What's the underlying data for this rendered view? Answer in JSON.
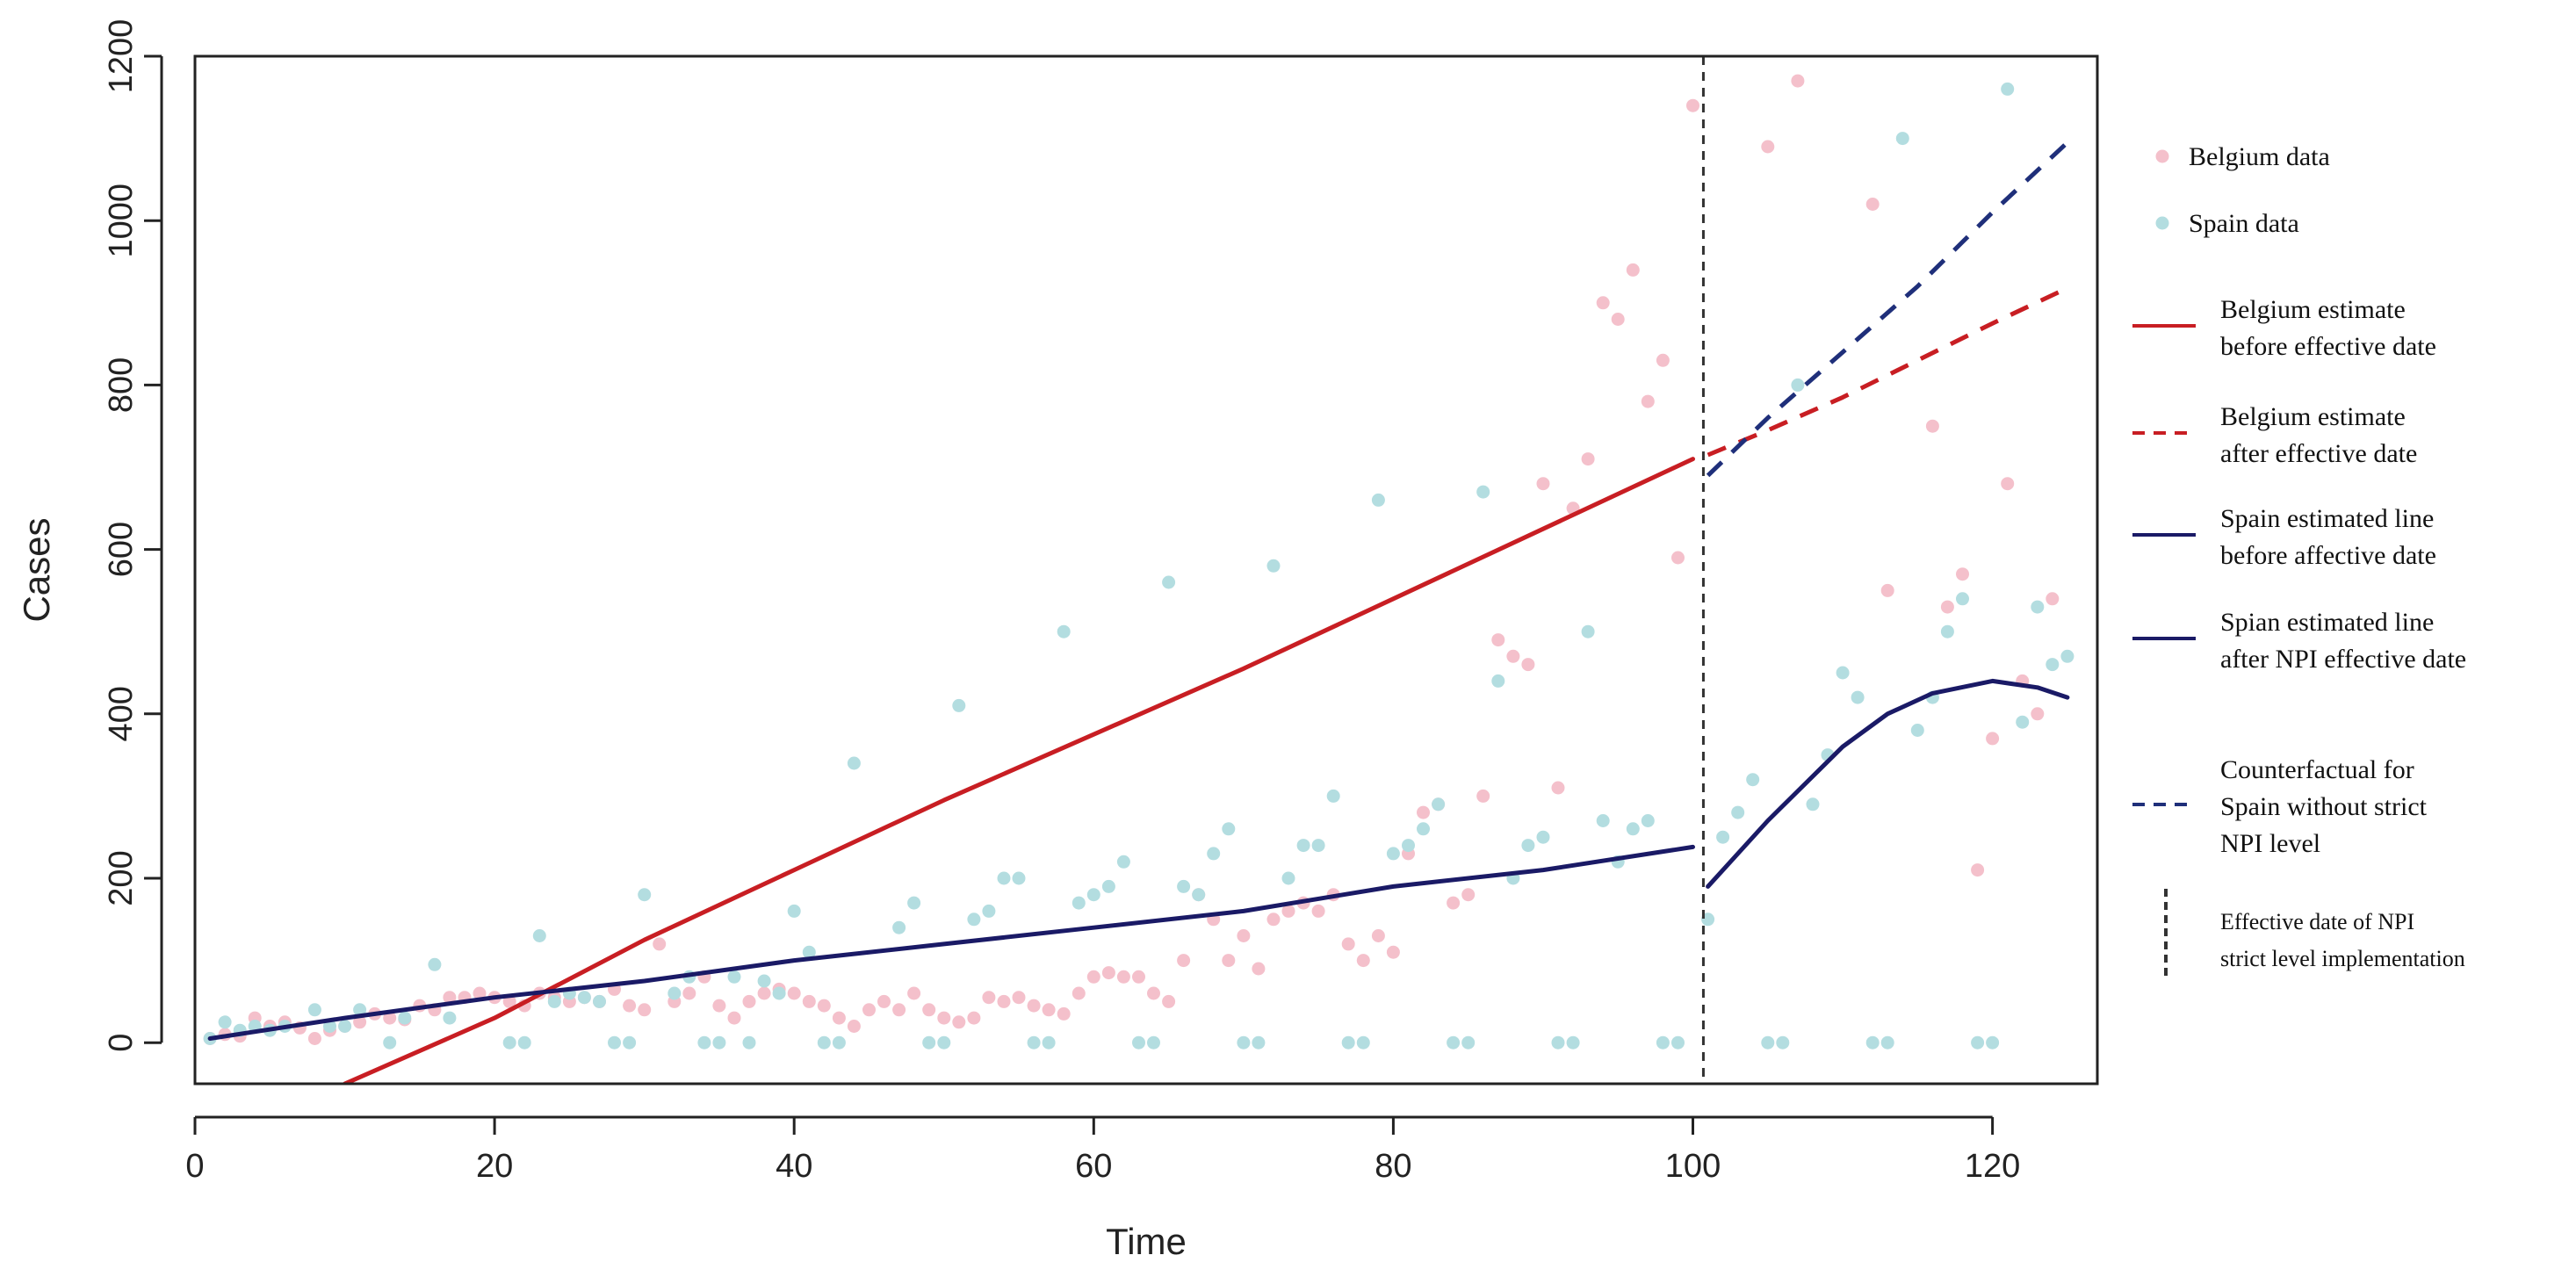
{
  "chart_data": {
    "type": "scatter",
    "title": "",
    "xlabel": "Time",
    "ylabel": "Cases",
    "xlim": [
      0,
      127
    ],
    "ylim": [
      -50,
      1200
    ],
    "x_ticks": [
      0,
      20,
      40,
      60,
      80,
      100,
      120
    ],
    "y_ticks": [
      0,
      200,
      400,
      600,
      800,
      1000,
      1200
    ],
    "grid": false,
    "legend_position": "right",
    "effective_date": 100.7,
    "colors": {
      "belgium_points": "#f4c0cb",
      "spain_points": "#b3dde0",
      "belgium_line": "#c81e23",
      "spain_line": "#1a1a66",
      "counterfactual": "#1f2f7a",
      "vline": "#333333"
    },
    "series": [
      {
        "name": "Belgium data",
        "kind": "points",
        "points": [
          [
            1,
            5
          ],
          [
            2,
            10
          ],
          [
            3,
            8
          ],
          [
            4,
            30
          ],
          [
            5,
            20
          ],
          [
            6,
            25
          ],
          [
            7,
            18
          ],
          [
            8,
            5
          ],
          [
            9,
            15
          ],
          [
            10,
            20
          ],
          [
            11,
            25
          ],
          [
            12,
            35
          ],
          [
            13,
            30
          ],
          [
            14,
            28
          ],
          [
            15,
            45
          ],
          [
            16,
            40
          ],
          [
            17,
            55
          ],
          [
            18,
            55
          ],
          [
            19,
            60
          ],
          [
            20,
            55
          ],
          [
            21,
            50
          ],
          [
            22,
            45
          ],
          [
            23,
            60
          ],
          [
            24,
            55
          ],
          [
            25,
            50
          ],
          [
            26,
            55
          ],
          [
            27,
            50
          ],
          [
            28,
            65
          ],
          [
            29,
            45
          ],
          [
            30,
            40
          ],
          [
            31,
            120
          ],
          [
            32,
            50
          ],
          [
            33,
            60
          ],
          [
            34,
            80
          ],
          [
            35,
            45
          ],
          [
            36,
            30
          ],
          [
            37,
            50
          ],
          [
            38,
            60
          ],
          [
            39,
            65
          ],
          [
            40,
            60
          ],
          [
            41,
            50
          ],
          [
            42,
            45
          ],
          [
            43,
            30
          ],
          [
            44,
            20
          ],
          [
            45,
            40
          ],
          [
            46,
            50
          ],
          [
            47,
            40
          ],
          [
            48,
            60
          ],
          [
            49,
            40
          ],
          [
            50,
            30
          ],
          [
            51,
            25
          ],
          [
            52,
            30
          ],
          [
            53,
            55
          ],
          [
            54,
            50
          ],
          [
            55,
            55
          ],
          [
            56,
            45
          ],
          [
            57,
            40
          ],
          [
            58,
            35
          ],
          [
            59,
            60
          ],
          [
            60,
            80
          ],
          [
            61,
            85
          ],
          [
            62,
            80
          ],
          [
            63,
            80
          ],
          [
            64,
            60
          ],
          [
            65,
            50
          ],
          [
            66,
            100
          ],
          [
            67,
            180
          ],
          [
            68,
            150
          ],
          [
            69,
            100
          ],
          [
            70,
            130
          ],
          [
            71,
            90
          ],
          [
            72,
            150
          ],
          [
            73,
            160
          ],
          [
            74,
            170
          ],
          [
            75,
            160
          ],
          [
            76,
            180
          ],
          [
            77,
            120
          ],
          [
            78,
            100
          ],
          [
            79,
            130
          ],
          [
            80,
            110
          ],
          [
            81,
            230
          ],
          [
            82,
            280
          ],
          [
            83,
            290
          ],
          [
            84,
            170
          ],
          [
            85,
            180
          ],
          [
            86,
            300
          ],
          [
            87,
            490
          ],
          [
            88,
            470
          ],
          [
            89,
            460
          ],
          [
            90,
            680
          ],
          [
            91,
            310
          ],
          [
            92,
            650
          ],
          [
            93,
            710
          ],
          [
            94,
            900
          ],
          [
            95,
            880
          ],
          [
            96,
            940
          ],
          [
            97,
            780
          ],
          [
            98,
            830
          ],
          [
            99,
            590
          ],
          [
            100,
            1140
          ],
          [
            105,
            1090
          ],
          [
            107,
            1170
          ],
          [
            112,
            1020
          ],
          [
            113,
            550
          ],
          [
            116,
            750
          ],
          [
            117,
            530
          ],
          [
            118,
            570
          ],
          [
            119,
            210
          ],
          [
            120,
            370
          ],
          [
            121,
            680
          ],
          [
            122,
            440
          ],
          [
            123,
            400
          ],
          [
            124,
            540
          ]
        ]
      },
      {
        "name": "Spain data",
        "kind": "points",
        "points": [
          [
            1,
            5
          ],
          [
            2,
            25
          ],
          [
            3,
            15
          ],
          [
            4,
            20
          ],
          [
            5,
            15
          ],
          [
            6,
            20
          ],
          [
            8,
            40
          ],
          [
            9,
            20
          ],
          [
            10,
            20
          ],
          [
            11,
            40
          ],
          [
            13,
            0
          ],
          [
            14,
            30
          ],
          [
            16,
            95
          ],
          [
            17,
            30
          ],
          [
            21,
            0
          ],
          [
            22,
            0
          ],
          [
            23,
            130
          ],
          [
            24,
            50
          ],
          [
            25,
            60
          ],
          [
            26,
            55
          ],
          [
            27,
            50
          ],
          [
            28,
            0
          ],
          [
            29,
            0
          ],
          [
            30,
            180
          ],
          [
            32,
            60
          ],
          [
            33,
            80
          ],
          [
            34,
            0
          ],
          [
            35,
            0
          ],
          [
            36,
            80
          ],
          [
            37,
            0
          ],
          [
            38,
            75
          ],
          [
            39,
            60
          ],
          [
            40,
            160
          ],
          [
            41,
            110
          ],
          [
            42,
            0
          ],
          [
            43,
            0
          ],
          [
            44,
            340
          ],
          [
            47,
            140
          ],
          [
            48,
            170
          ],
          [
            49,
            0
          ],
          [
            50,
            0
          ],
          [
            51,
            410
          ],
          [
            52,
            150
          ],
          [
            53,
            160
          ],
          [
            54,
            200
          ],
          [
            55,
            200
          ],
          [
            56,
            0
          ],
          [
            57,
            0
          ],
          [
            58,
            500
          ],
          [
            59,
            170
          ],
          [
            60,
            180
          ],
          [
            61,
            190
          ],
          [
            62,
            220
          ],
          [
            63,
            0
          ],
          [
            64,
            0
          ],
          [
            65,
            560
          ],
          [
            66,
            190
          ],
          [
            67,
            180
          ],
          [
            68,
            230
          ],
          [
            69,
            260
          ],
          [
            70,
            0
          ],
          [
            71,
            0
          ],
          [
            72,
            580
          ],
          [
            73,
            200
          ],
          [
            74,
            240
          ],
          [
            75,
            240
          ],
          [
            76,
            300
          ],
          [
            77,
            0
          ],
          [
            78,
            0
          ],
          [
            79,
            660
          ],
          [
            80,
            230
          ],
          [
            81,
            240
          ],
          [
            82,
            260
          ],
          [
            83,
            290
          ],
          [
            84,
            0
          ],
          [
            85,
            0
          ],
          [
            86,
            670
          ],
          [
            87,
            440
          ],
          [
            88,
            200
          ],
          [
            89,
            240
          ],
          [
            90,
            250
          ],
          [
            91,
            0
          ],
          [
            92,
            0
          ],
          [
            93,
            500
          ],
          [
            94,
            270
          ],
          [
            95,
            220
          ],
          [
            96,
            260
          ],
          [
            97,
            270
          ],
          [
            98,
            0
          ],
          [
            99,
            0
          ],
          [
            101,
            150
          ],
          [
            102,
            250
          ],
          [
            103,
            280
          ],
          [
            104,
            320
          ],
          [
            105,
            0
          ],
          [
            106,
            0
          ],
          [
            107,
            800
          ],
          [
            108,
            290
          ],
          [
            109,
            350
          ],
          [
            110,
            450
          ],
          [
            111,
            420
          ],
          [
            112,
            0
          ],
          [
            113,
            0
          ],
          [
            114,
            1100
          ],
          [
            115,
            380
          ],
          [
            116,
            420
          ],
          [
            117,
            500
          ],
          [
            118,
            540
          ],
          [
            119,
            0
          ],
          [
            120,
            0
          ],
          [
            121,
            1160
          ],
          [
            122,
            390
          ],
          [
            123,
            530
          ],
          [
            124,
            460
          ],
          [
            125,
            470
          ]
        ]
      },
      {
        "name": "Belgium estimate before effective date",
        "kind": "line",
        "style": "solid",
        "points": [
          [
            10,
            -50
          ],
          [
            20,
            30
          ],
          [
            30,
            125
          ],
          [
            40,
            210
          ],
          [
            50,
            295
          ],
          [
            60,
            375
          ],
          [
            70,
            455
          ],
          [
            80,
            540
          ],
          [
            90,
            625
          ],
          [
            100,
            710
          ]
        ]
      },
      {
        "name": "Belgium estimate after effective date",
        "kind": "line",
        "style": "dashed",
        "points": [
          [
            101,
            715
          ],
          [
            105,
            745
          ],
          [
            110,
            785
          ],
          [
            115,
            830
          ],
          [
            120,
            875
          ],
          [
            125,
            918
          ]
        ]
      },
      {
        "name": "Spain estimated line before affective date",
        "kind": "line",
        "style": "solid",
        "points": [
          [
            1,
            5
          ],
          [
            10,
            30
          ],
          [
            20,
            55
          ],
          [
            30,
            75
          ],
          [
            40,
            100
          ],
          [
            50,
            120
          ],
          [
            60,
            140
          ],
          [
            70,
            160
          ],
          [
            80,
            190
          ],
          [
            90,
            210
          ],
          [
            100,
            238
          ]
        ]
      },
      {
        "name": "Spian estimated line after NPI effective date",
        "kind": "line",
        "style": "solid",
        "points": [
          [
            101,
            190
          ],
          [
            105,
            270
          ],
          [
            110,
            360
          ],
          [
            113,
            400
          ],
          [
            116,
            425
          ],
          [
            120,
            440
          ],
          [
            123,
            432
          ],
          [
            125,
            420
          ]
        ]
      },
      {
        "name": "Counterfactual for Spain without strict NPI level",
        "kind": "line",
        "style": "dashed",
        "points": [
          [
            101,
            690
          ],
          [
            105,
            760
          ],
          [
            110,
            840
          ],
          [
            115,
            920
          ],
          [
            120,
            1010
          ],
          [
            125,
            1095
          ]
        ]
      }
    ],
    "legend": [
      {
        "kind": "point",
        "color": "belgium_points",
        "lines": [
          "Belgium data"
        ]
      },
      {
        "kind": "point",
        "color": "spain_points",
        "lines": [
          "Spain data"
        ]
      },
      {
        "kind": "solid",
        "color": "belgium_line",
        "lines": [
          "Belgium estimate",
          "before effective date"
        ]
      },
      {
        "kind": "dashed",
        "color": "belgium_line",
        "lines": [
          "Belgium estimate",
          "after effective date"
        ]
      },
      {
        "kind": "solid",
        "color": "spain_line",
        "lines": [
          "Spain estimated line",
          "before affective date"
        ]
      },
      {
        "kind": "solid",
        "color": "spain_line",
        "lines": [
          "Spian estimated line",
          "after NPI effective date"
        ]
      },
      {
        "kind": "dashed",
        "color": "counterfactual",
        "lines": [
          "Counterfactual for",
          "Spain without strict",
          "NPI level"
        ]
      },
      {
        "kind": "vline",
        "color": "vline",
        "lines": [
          "Effective date of NPI",
          "strict level implementation"
        ]
      }
    ]
  }
}
